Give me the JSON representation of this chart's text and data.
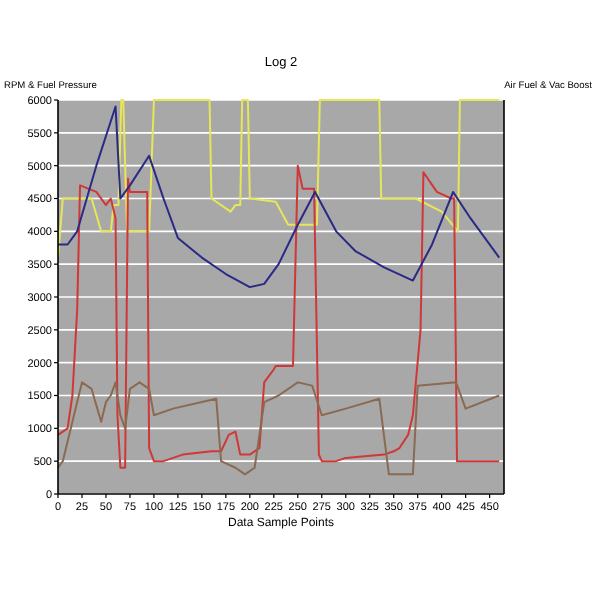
{
  "chart_data": {
    "type": "line",
    "title": "Log 2",
    "xlabel": "Data Sample Points",
    "ylabel": "RPM & Fuel Pressure",
    "y2label": "Air Fuel & Vac Boost",
    "xlim": [
      0,
      465
    ],
    "xticks": [
      0,
      25,
      50,
      75,
      100,
      125,
      150,
      175,
      200,
      225,
      250,
      275,
      300,
      325,
      350,
      375,
      400,
      425,
      450
    ],
    "ylim": [
      0,
      6000
    ],
    "yticks": [
      0,
      500,
      1000,
      1500,
      2000,
      2500,
      3000,
      3500,
      4000,
      4500,
      5000,
      5500,
      6000
    ],
    "grid": "y",
    "marker": "none",
    "line_style": "solid",
    "series": [
      {
        "color": "#e6e65a",
        "x": [
          0,
          5,
          35,
          45,
          55,
          58,
          63,
          66,
          68,
          72,
          95,
          100,
          158,
          160,
          180,
          185,
          190,
          192,
          198,
          200,
          227,
          240,
          270,
          273,
          335,
          337,
          373,
          400,
          417,
          419,
          460
        ],
        "values": [
          3600,
          4500,
          4500,
          4000,
          4000,
          4400,
          4400,
          6000,
          6000,
          4000,
          4000,
          6000,
          6000,
          4500,
          4300,
          4400,
          4400,
          6000,
          6000,
          4500,
          4450,
          4100,
          4100,
          6000,
          6000,
          4500,
          4500,
          4300,
          4000,
          6000,
          6000
        ]
      },
      {
        "color": "#d03838",
        "x": [
          0,
          10,
          15,
          20,
          23,
          40,
          50,
          55,
          60,
          62,
          65,
          70,
          73,
          75,
          80,
          93,
          95,
          100,
          110,
          130,
          160,
          170,
          178,
          185,
          190,
          200,
          210,
          215,
          220,
          225,
          227,
          235,
          245,
          250,
          255,
          267,
          272,
          275,
          290,
          300,
          340,
          350,
          356,
          365,
          370,
          378,
          381,
          395,
          410,
          413,
          416,
          425,
          460
        ],
        "values": [
          900,
          1000,
          1500,
          2800,
          4700,
          4600,
          4400,
          4500,
          4200,
          1200,
          400,
          400,
          4800,
          4600,
          4600,
          4600,
          700,
          500,
          500,
          600,
          650,
          650,
          900,
          950,
          600,
          600,
          700,
          1700,
          1800,
          1900,
          1950,
          1950,
          1950,
          5000,
          4650,
          4650,
          600,
          500,
          500,
          550,
          600,
          650,
          700,
          900,
          1200,
          2500,
          4900,
          4600,
          4500,
          4500,
          500,
          500,
          500
        ]
      },
      {
        "color": "#8a6a52",
        "x": [
          0,
          5,
          15,
          25,
          35,
          45,
          50,
          55,
          60,
          65,
          70,
          75,
          85,
          95,
          100,
          120,
          150,
          165,
          170,
          185,
          195,
          205,
          215,
          230,
          250,
          265,
          275,
          300,
          335,
          345,
          370,
          375,
          415,
          425,
          460
        ],
        "values": [
          400,
          500,
          1100,
          1700,
          1600,
          1100,
          1400,
          1500,
          1700,
          1200,
          1000,
          1600,
          1700,
          1600,
          1200,
          1300,
          1400,
          1450,
          500,
          400,
          300,
          400,
          1400,
          1500,
          1700,
          1650,
          1200,
          1300,
          1450,
          300,
          300,
          1650,
          1700,
          1300,
          1500
        ]
      },
      {
        "color": "#2a2a86",
        "x": [
          0,
          10,
          20,
          40,
          60,
          65,
          75,
          95,
          110,
          125,
          150,
          175,
          200,
          215,
          230,
          250,
          268,
          290,
          310,
          340,
          370,
          390,
          412,
          430,
          460
        ],
        "values": [
          3800,
          3800,
          4000,
          5000,
          5900,
          4500,
          4700,
          5150,
          4500,
          3900,
          3600,
          3350,
          3150,
          3200,
          3500,
          4100,
          4600,
          4000,
          3700,
          3450,
          3250,
          3800,
          4600,
          4200,
          3600
        ]
      }
    ]
  }
}
